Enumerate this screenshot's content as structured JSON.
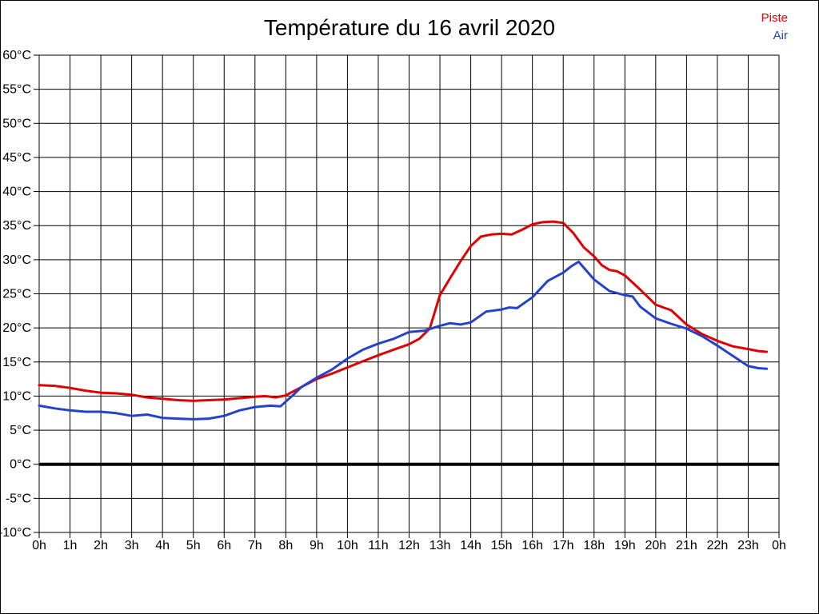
{
  "title": "Température du 16 avril 2020",
  "legend": [
    {
      "label": "Piste",
      "color": "#e00000"
    },
    {
      "label": "Air",
      "color": "#2442cc"
    }
  ],
  "colors": {
    "background": "#ffffff",
    "grid": "#000000",
    "axis": "#000000",
    "zero_line": "#000000",
    "piste_line": "#e00000",
    "air_line": "#2442cc"
  },
  "chart_data": {
    "type": "line",
    "title": "Température du 16 avril 2020",
    "xlabel": "",
    "ylabel": "",
    "xlim": [
      0,
      24
    ],
    "ylim": [
      -10,
      60
    ],
    "grid": true,
    "zero_line_value": 0,
    "legend_position": "top-right",
    "x_tick_hours": [
      0,
      1,
      2,
      3,
      4,
      5,
      6,
      7,
      8,
      9,
      10,
      11,
      12,
      13,
      14,
      15,
      16,
      17,
      18,
      19,
      20,
      21,
      22,
      23,
      24
    ],
    "x_tick_labels": [
      "0h",
      "1h",
      "2h",
      "3h",
      "4h",
      "5h",
      "6h",
      "7h",
      "8h",
      "9h",
      "10h",
      "11h",
      "12h",
      "13h",
      "14h",
      "15h",
      "16h",
      "17h",
      "18h",
      "19h",
      "20h",
      "21h",
      "22h",
      "23h",
      "0h"
    ],
    "y_tick_values": [
      60,
      55,
      50,
      45,
      40,
      35,
      30,
      25,
      20,
      15,
      10,
      5,
      0,
      -5,
      -10
    ],
    "y_tick_labels": [
      "60°C",
      "55°C",
      "50°C",
      "45°C",
      "40°C",
      "35°C",
      "30°C",
      "25°C",
      "20°C",
      "15°C",
      "10°C",
      "5°C",
      "0°C",
      "-5°C",
      "-10°C"
    ],
    "series": [
      {
        "name": "Piste",
        "color": "#e00000",
        "points": [
          [
            0,
            11.6
          ],
          [
            0.5,
            11.5
          ],
          [
            1,
            11.2
          ],
          [
            1.5,
            10.8
          ],
          [
            2,
            10.5
          ],
          [
            2.5,
            10.4
          ],
          [
            3,
            10.2
          ],
          [
            3.5,
            9.8
          ],
          [
            4,
            9.6
          ],
          [
            4.5,
            9.4
          ],
          [
            5,
            9.3
          ],
          [
            5.5,
            9.4
          ],
          [
            6,
            9.5
          ],
          [
            6.5,
            9.7
          ],
          [
            7,
            9.9
          ],
          [
            7.33,
            10.0
          ],
          [
            7.67,
            9.8
          ],
          [
            8,
            10.1
          ],
          [
            8.5,
            11.3
          ],
          [
            9,
            12.5
          ],
          [
            9.5,
            13.3
          ],
          [
            10,
            14.2
          ],
          [
            10.5,
            15.1
          ],
          [
            11,
            16.0
          ],
          [
            11.5,
            16.8
          ],
          [
            12,
            17.6
          ],
          [
            12.33,
            18.4
          ],
          [
            12.67,
            19.9
          ],
          [
            13,
            24.8
          ],
          [
            13.33,
            27.3
          ],
          [
            13.67,
            29.8
          ],
          [
            14,
            32.0
          ],
          [
            14.33,
            33.4
          ],
          [
            14.67,
            33.7
          ],
          [
            15,
            33.8
          ],
          [
            15.33,
            33.7
          ],
          [
            15.67,
            34.4
          ],
          [
            16,
            35.2
          ],
          [
            16.33,
            35.5
          ],
          [
            16.67,
            35.6
          ],
          [
            17,
            35.4
          ],
          [
            17.33,
            33.9
          ],
          [
            17.67,
            31.8
          ],
          [
            18,
            30.5
          ],
          [
            18.25,
            29.2
          ],
          [
            18.5,
            28.5
          ],
          [
            18.75,
            28.3
          ],
          [
            19,
            27.7
          ],
          [
            19.5,
            25.6
          ],
          [
            20,
            23.4
          ],
          [
            20.25,
            23.0
          ],
          [
            20.5,
            22.6
          ],
          [
            21,
            20.5
          ],
          [
            21.5,
            19.1
          ],
          [
            22,
            18.1
          ],
          [
            22.5,
            17.3
          ],
          [
            23,
            16.9
          ],
          [
            23.33,
            16.6
          ],
          [
            23.6,
            16.5
          ]
        ]
      },
      {
        "name": "Air",
        "color": "#2442cc",
        "points": [
          [
            0,
            8.6
          ],
          [
            0.5,
            8.2
          ],
          [
            1,
            7.9
          ],
          [
            1.5,
            7.7
          ],
          [
            2,
            7.7
          ],
          [
            2.5,
            7.5
          ],
          [
            3,
            7.1
          ],
          [
            3.5,
            7.3
          ],
          [
            4,
            6.8
          ],
          [
            4.5,
            6.7
          ],
          [
            5,
            6.6
          ],
          [
            5.5,
            6.7
          ],
          [
            6,
            7.1
          ],
          [
            6.5,
            7.9
          ],
          [
            7,
            8.4
          ],
          [
            7.5,
            8.6
          ],
          [
            7.83,
            8.5
          ],
          [
            8,
            9.2
          ],
          [
            8.25,
            10.2
          ],
          [
            8.5,
            11.3
          ],
          [
            9,
            12.7
          ],
          [
            9.5,
            13.9
          ],
          [
            10,
            15.5
          ],
          [
            10.5,
            16.8
          ],
          [
            11,
            17.7
          ],
          [
            11.5,
            18.4
          ],
          [
            12,
            19.4
          ],
          [
            12.5,
            19.6
          ],
          [
            13,
            20.3
          ],
          [
            13.33,
            20.7
          ],
          [
            13.67,
            20.5
          ],
          [
            14,
            20.8
          ],
          [
            14.5,
            22.4
          ],
          [
            15,
            22.7
          ],
          [
            15.25,
            23.0
          ],
          [
            15.5,
            22.9
          ],
          [
            16,
            24.5
          ],
          [
            16.5,
            26.9
          ],
          [
            17,
            28.1
          ],
          [
            17.25,
            29.0
          ],
          [
            17.5,
            29.7
          ],
          [
            17.75,
            28.4
          ],
          [
            18,
            27.1
          ],
          [
            18.5,
            25.4
          ],
          [
            19,
            24.8
          ],
          [
            19.25,
            24.6
          ],
          [
            19.5,
            23.1
          ],
          [
            20,
            21.4
          ],
          [
            20.5,
            20.6
          ],
          [
            21,
            19.9
          ],
          [
            21.5,
            18.8
          ],
          [
            22,
            17.4
          ],
          [
            22.5,
            15.9
          ],
          [
            23,
            14.4
          ],
          [
            23.33,
            14.1
          ],
          [
            23.6,
            14.0
          ]
        ]
      }
    ]
  }
}
